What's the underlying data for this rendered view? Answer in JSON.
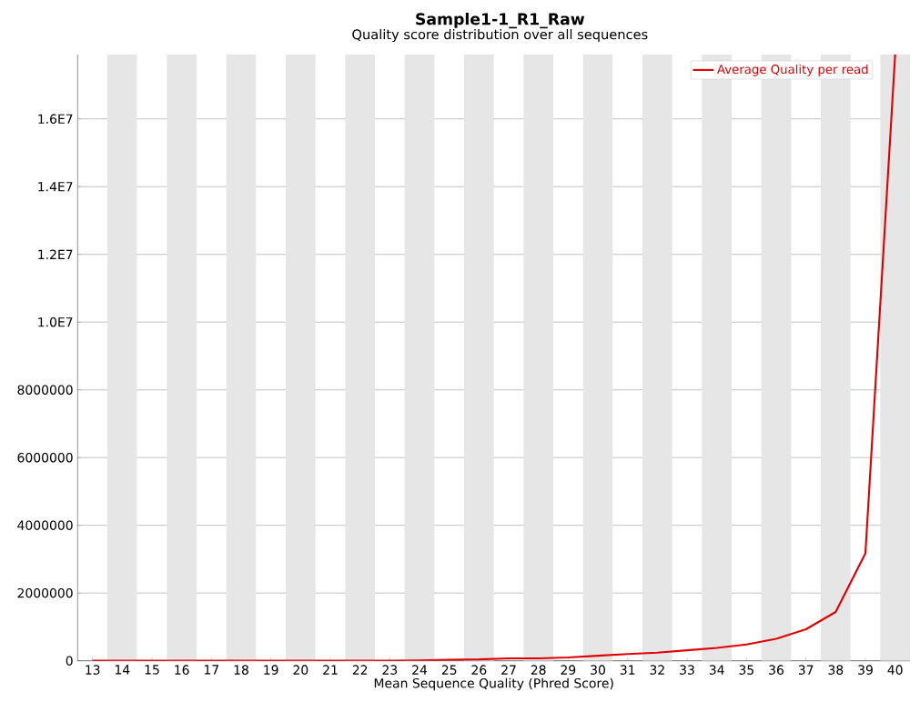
{
  "chart_data": {
    "type": "line",
    "title": "Sample1-1_R1_Raw",
    "subtitle": "Quality score distribution over all sequences",
    "xlabel": "Mean Sequence Quality (Phred Score)",
    "x": [
      13,
      14,
      15,
      16,
      17,
      18,
      19,
      20,
      21,
      22,
      23,
      24,
      25,
      26,
      27,
      28,
      29,
      30,
      31,
      32,
      33,
      34,
      35,
      36,
      37,
      38,
      39,
      40
    ],
    "series": [
      {
        "name": "Average Quality per read",
        "color": "#e00000",
        "values": [
          0,
          0,
          0,
          0,
          0,
          0,
          0,
          0,
          0,
          0,
          0,
          10000,
          30000,
          40000,
          70000,
          70000,
          100000,
          150000,
          200000,
          240000,
          310000,
          380000,
          480000,
          650000,
          930000,
          1440000,
          3170000,
          17900000
        ]
      }
    ],
    "xlim": [
      12.5,
      40.5
    ],
    "xticks": [
      13,
      14,
      15,
      16,
      17,
      18,
      19,
      20,
      21,
      22,
      23,
      24,
      25,
      26,
      27,
      28,
      29,
      30,
      31,
      32,
      33,
      34,
      35,
      36,
      37,
      38,
      39,
      40
    ],
    "ylim": [
      0,
      17900000
    ],
    "yticks": [
      0,
      2000000,
      4000000,
      6000000,
      8000000,
      {
        "value": 10000000,
        "label": "1.0E7"
      },
      {
        "value": 12000000,
        "label": "1.2E7"
      },
      {
        "value": 14000000,
        "label": "1.4E7"
      },
      {
        "value": 16000000,
        "label": "1.6E7"
      }
    ],
    "bands": [
      {
        "axis": "x",
        "from": 13.5,
        "to": 14.5,
        "color": "#e6e6e6"
      },
      {
        "axis": "x",
        "from": 15.5,
        "to": 16.5,
        "color": "#e6e6e6"
      },
      {
        "axis": "x",
        "from": 17.5,
        "to": 18.5,
        "color": "#e6e6e6"
      },
      {
        "axis": "x",
        "from": 19.5,
        "to": 20.5,
        "color": "#e6e6e6"
      },
      {
        "axis": "x",
        "from": 21.5,
        "to": 22.5,
        "color": "#e6e6e6"
      },
      {
        "axis": "x",
        "from": 23.5,
        "to": 24.5,
        "color": "#e6e6e6"
      },
      {
        "axis": "x",
        "from": 25.5,
        "to": 26.5,
        "color": "#e6e6e6"
      },
      {
        "axis": "x",
        "from": 27.5,
        "to": 28.5,
        "color": "#e6e6e6"
      },
      {
        "axis": "x",
        "from": 29.5,
        "to": 30.5,
        "color": "#e6e6e6"
      },
      {
        "axis": "x",
        "from": 31.5,
        "to": 32.5,
        "color": "#e6e6e6"
      },
      {
        "axis": "x",
        "from": 33.5,
        "to": 34.5,
        "color": "#e6e6e6"
      },
      {
        "axis": "x",
        "from": 35.5,
        "to": 36.5,
        "color": "#e6e6e6"
      },
      {
        "axis": "x",
        "from": 37.5,
        "to": 38.5,
        "color": "#e6e6e6"
      },
      {
        "axis": "x",
        "from": 39.5,
        "to": 40.5,
        "color": "#e6e6e6"
      }
    ],
    "grid": "y",
    "legend": "top right",
    "marker": "none",
    "line_style": "solid"
  }
}
